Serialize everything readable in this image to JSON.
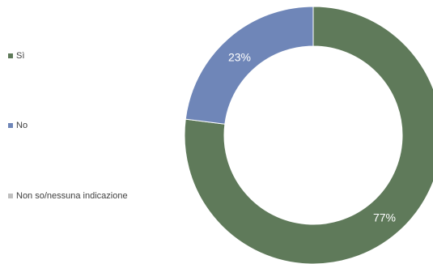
{
  "chart_data": {
    "type": "pie",
    "variant": "donut",
    "title": "",
    "categories": [
      "Sì",
      "No",
      "Non so/nessuna indicazione"
    ],
    "values": [
      77,
      23,
      0
    ],
    "unit": "%",
    "data_labels": [
      "77%",
      "23%",
      ""
    ],
    "colors": [
      "#5f7a5a",
      "#6f86b8",
      "#bfbfbf"
    ],
    "legend_position": "left"
  }
}
